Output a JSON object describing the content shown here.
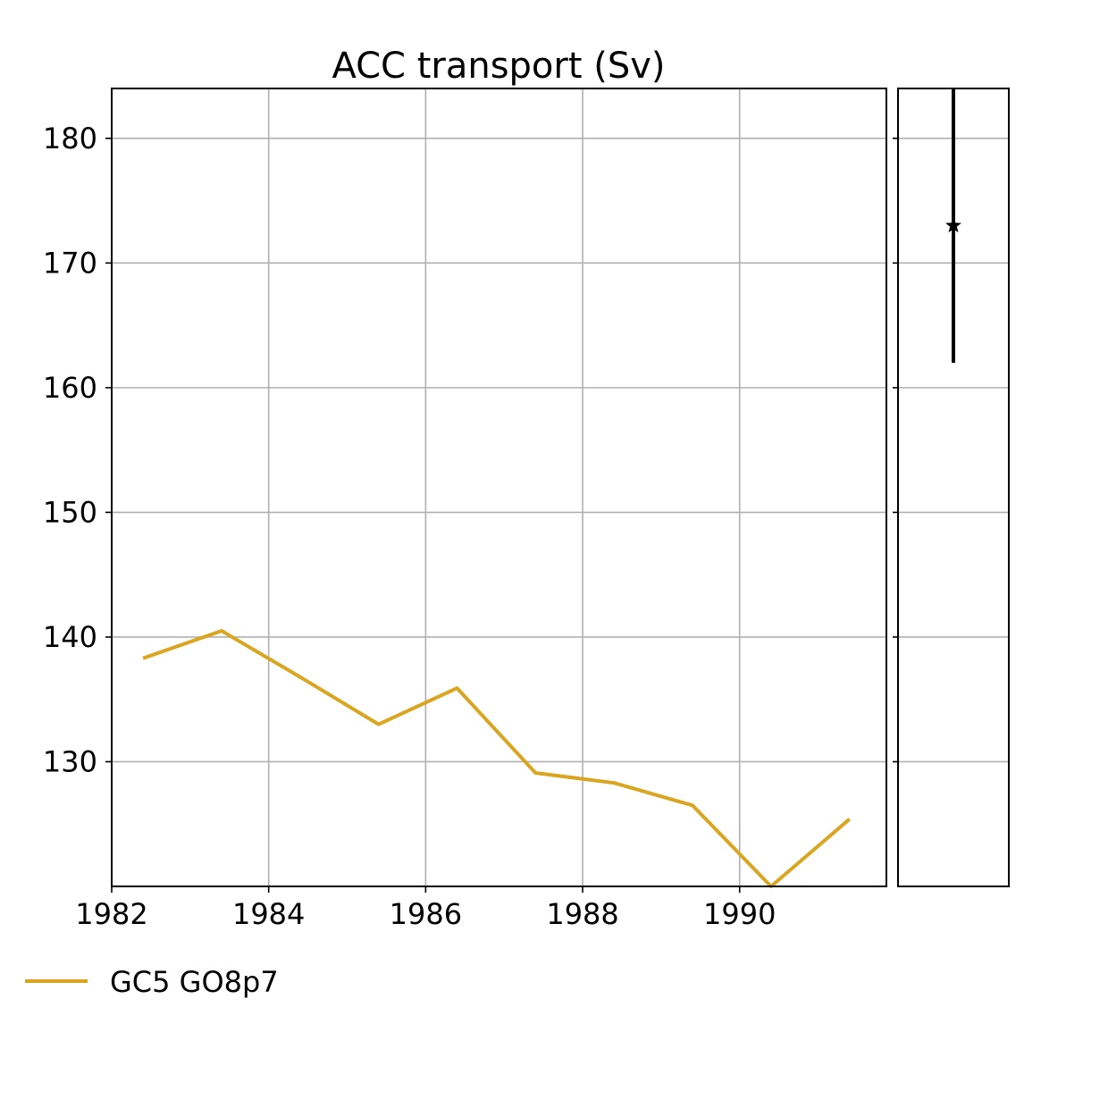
{
  "chart_data": {
    "type": "line",
    "title": "ACC transport (Sv)",
    "xlabel": "",
    "ylabel": "",
    "xlim": [
      1982,
      1991.87
    ],
    "ylim": [
      120,
      184
    ],
    "x_ticks": [
      1982,
      1984,
      1986,
      1988,
      1990
    ],
    "y_ticks": [
      130,
      140,
      150,
      160,
      170,
      180
    ],
    "grid": true,
    "legend_position": "bottom-left",
    "series": [
      {
        "name": "GC5 GO8p7",
        "color": "#DAA520",
        "x": [
          1982.4,
          1983.4,
          1984.4,
          1985.4,
          1986.4,
          1987.4,
          1988.4,
          1989.4,
          1990.4,
          1991.4
        ],
        "y": [
          138.3,
          140.5,
          136.8,
          133.0,
          135.9,
          129.1,
          128.3,
          126.5,
          120.0,
          125.4
        ]
      }
    ],
    "observation": {
      "marker": "star",
      "color": "#000000",
      "value": 173,
      "range": [
        162,
        184
      ]
    }
  }
}
